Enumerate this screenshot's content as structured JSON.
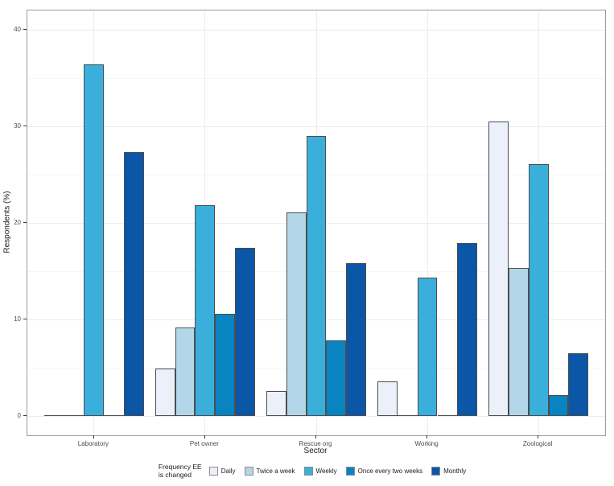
{
  "chart_data": {
    "type": "bar",
    "title": "",
    "xlabel": "Sector",
    "ylabel": "Respondents (%)",
    "categories": [
      "Laboratory",
      "Pet owner",
      "Rescue org",
      "Working",
      "Zoological"
    ],
    "series": [
      {
        "name": "Daily",
        "color": "#EBF0FA",
        "values": [
          0,
          4.9,
          2.6,
          3.6,
          30.5
        ]
      },
      {
        "name": "Twice a week",
        "color": "#B3D7E8",
        "values": [
          0,
          9.2,
          21.1,
          0,
          15.3
        ]
      },
      {
        "name": "Weekly",
        "color": "#3AAFDC",
        "values": [
          36.4,
          21.8,
          29.0,
          14.3,
          26.1
        ]
      },
      {
        "name": "Once every two weeks",
        "color": "#0884C2",
        "values": [
          0,
          10.6,
          7.8,
          0,
          2.2
        ]
      },
      {
        "name": "Monthly",
        "color": "#0B56A6",
        "values": [
          27.3,
          17.4,
          15.8,
          17.9,
          6.5
        ]
      }
    ],
    "ylim": [
      0,
      40
    ],
    "yticks": [
      0,
      10,
      20,
      30,
      40
    ],
    "yticks_minor": [
      5,
      15,
      25,
      35
    ],
    "legend_title": "Frequency EE\nis changed",
    "legend_position": "bottom",
    "grid": "horizontal major+minor, vertical major at category centers",
    "bar_border_color": "#4d4d4d",
    "panel_border_color": "#9b9b9b"
  }
}
